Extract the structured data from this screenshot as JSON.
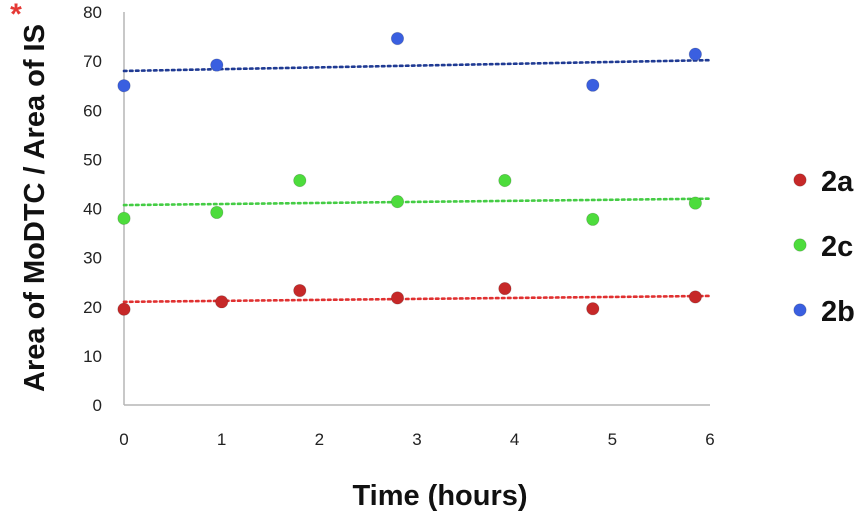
{
  "chart_data": {
    "type": "scatter",
    "title": "",
    "xlabel": "Time (hours)",
    "ylabel": "Area of MoDTC / Area of IS",
    "ylabel_marker": "*",
    "xlim": [
      0,
      6
    ],
    "ylim": [
      0,
      80
    ],
    "xticks": [
      0,
      1,
      2,
      3,
      4,
      5,
      6
    ],
    "yticks": [
      0,
      10,
      20,
      30,
      40,
      50,
      60,
      70,
      80
    ],
    "grid": false,
    "legend": "right",
    "trendline": "linear, dotted",
    "series": [
      {
        "name": "2a",
        "color": "#c62828",
        "x": [
          0,
          1,
          1.8,
          2.8,
          3.9,
          4.8,
          5.85
        ],
        "y": [
          19.5,
          21,
          23.3,
          21.8,
          23.7,
          19.6,
          22
        ],
        "trend": [
          21,
          22.2
        ]
      },
      {
        "name": "2c",
        "color": "#4ddc3c",
        "x": [
          0,
          0.95,
          1.8,
          2.8,
          3.9,
          4.8,
          5.85
        ],
        "y": [
          38,
          39.2,
          45.7,
          41.4,
          45.7,
          37.8,
          41.1
        ],
        "trend": [
          40.7,
          42
        ]
      },
      {
        "name": "2b",
        "color": "#3a5fe0",
        "x": [
          0,
          0.95,
          2.8,
          4.8,
          5.85
        ],
        "y": [
          65,
          69.2,
          74.6,
          65.1,
          71.4
        ],
        "trend": [
          68,
          70.2
        ]
      }
    ],
    "trend_colors": {
      "2a": "#e03030",
      "2c": "#44cc44",
      "2b": "#1f3a93"
    },
    "asterisk_color": "#e53935",
    "axis_color": "#b5b5b5"
  }
}
